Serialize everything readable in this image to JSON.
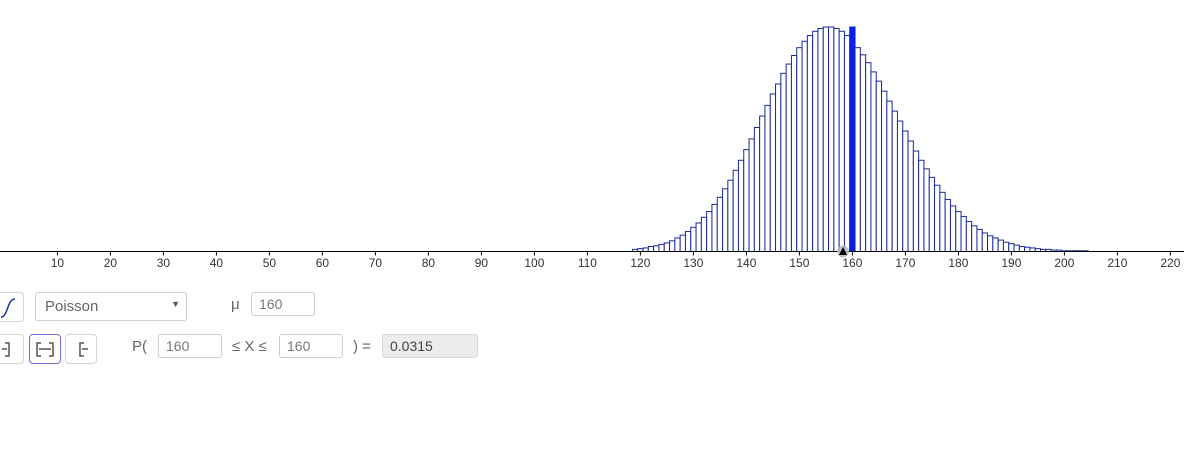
{
  "chart_data": {
    "type": "bar",
    "distribution": "Poisson",
    "mean": 160,
    "highlighted_x": 160,
    "x": [
      119,
      120,
      121,
      122,
      123,
      124,
      125,
      126,
      127,
      128,
      129,
      130,
      131,
      132,
      133,
      134,
      135,
      136,
      137,
      138,
      139,
      140,
      141,
      142,
      143,
      144,
      145,
      146,
      147,
      148,
      149,
      150,
      151,
      152,
      153,
      154,
      155,
      156,
      157,
      158,
      159,
      160,
      161,
      162,
      163,
      164,
      165,
      166,
      167,
      168,
      169,
      170,
      171,
      172,
      173,
      174,
      175,
      176,
      177,
      178,
      179,
      180,
      181,
      182,
      183,
      184,
      185,
      186,
      187,
      188,
      189,
      190,
      191,
      192,
      193,
      194,
      195,
      196,
      197,
      198,
      199,
      200,
      201,
      202,
      203,
      204,
      205,
      206
    ],
    "values": [
      0.0003,
      0.0004,
      0.0005,
      0.0007,
      0.0008,
      0.001,
      0.0012,
      0.0015,
      0.0019,
      0.0023,
      0.0028,
      0.0034,
      0.004,
      0.0048,
      0.0056,
      0.0066,
      0.0076,
      0.0088,
      0.01,
      0.0114,
      0.0128,
      0.0143,
      0.0158,
      0.0174,
      0.019,
      0.0205,
      0.0221,
      0.0235,
      0.025,
      0.0263,
      0.0275,
      0.0286,
      0.0295,
      0.0303,
      0.0309,
      0.0313,
      0.0315,
      0.0315,
      0.0313,
      0.0309,
      0.0303,
      0.0315,
      0.0286,
      0.0276,
      0.0265,
      0.0252,
      0.0239,
      0.0225,
      0.0211,
      0.0197,
      0.0183,
      0.0169,
      0.0155,
      0.0141,
      0.0128,
      0.0116,
      0.0104,
      0.0093,
      0.0083,
      0.0073,
      0.0064,
      0.0056,
      0.0049,
      0.0042,
      0.0036,
      0.0031,
      0.0026,
      0.0022,
      0.0019,
      0.0016,
      0.0013,
      0.0011,
      0.0009,
      0.0007,
      0.0006,
      0.0005,
      0.0004,
      0.0003,
      0.0003,
      0.0002,
      0.0002,
      0.0001,
      0.0001,
      0.0001,
      0.0001,
      0.0001,
      0.0,
      0.0
    ],
    "x_ticks": [
      10,
      20,
      30,
      40,
      50,
      60,
      70,
      80,
      90,
      100,
      110,
      120,
      130,
      140,
      150,
      160,
      170,
      180,
      190,
      200,
      210,
      220
    ],
    "xlim": [
      1,
      224
    ],
    "ylim": [
      0,
      0.0315
    ],
    "title": "",
    "xlabel": "",
    "ylabel": "",
    "colors": {
      "bar_stroke": "#1a2a9a",
      "highlight": "#0a1fe8",
      "axis": "#000000"
    }
  },
  "controls": {
    "distribution_select": {
      "value": "Poisson"
    },
    "params": {
      "mu_label": "μ",
      "mu_value": "160"
    },
    "probability": {
      "prefix": "P(",
      "middle": "≤ X ≤",
      "suffix": ") =",
      "lower": "160",
      "upper": "160",
      "result": "0.0315"
    },
    "interval_buttons": [
      "left-sided",
      "two-sided",
      "right-sided"
    ],
    "selected_interval": "two-sided"
  }
}
